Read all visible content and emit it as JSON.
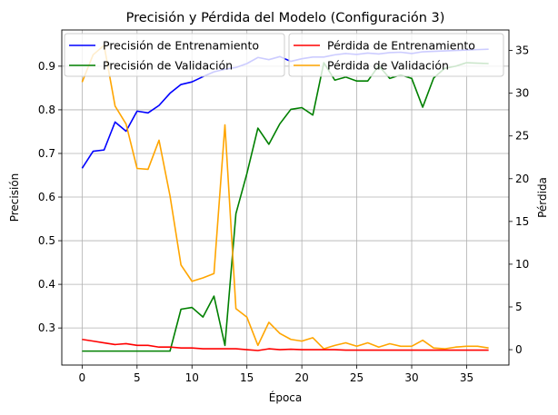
{
  "chart_data": {
    "type": "line",
    "title": "Precisión y Pérdida del Modelo (Configuración 3)",
    "xlabel": "Época",
    "ylabel_left": "Precisión",
    "ylabel_right": "Pérdida",
    "xlim": [
      -1.85,
      38.85
    ],
    "ylim_left": [
      0.215,
      0.983
    ],
    "ylim_right": [
      -1.8,
      37.4
    ],
    "xticks": [
      0,
      5,
      10,
      15,
      20,
      25,
      30,
      35
    ],
    "yticks_left": [
      0.3,
      0.4,
      0.5,
      0.6,
      0.7,
      0.8,
      0.9
    ],
    "yticks_right": [
      0,
      5,
      10,
      15,
      20,
      25,
      30,
      35
    ],
    "grid": true,
    "legend_left_placement": "upper-left",
    "legend_right_placement": "upper-right",
    "series": [
      {
        "name": "Precisión de Entrenamiento",
        "axis": "left",
        "color": "#0000ff",
        "x": [
          0,
          1,
          2,
          3,
          4,
          5,
          6,
          7,
          8,
          9,
          10,
          11,
          12,
          13,
          14,
          15,
          16,
          17,
          18,
          19,
          20,
          21,
          22,
          23,
          24,
          25,
          26,
          27,
          28,
          29,
          30,
          31,
          32,
          33,
          34,
          35,
          36,
          37
        ],
        "values": [
          0.666,
          0.705,
          0.708,
          0.772,
          0.751,
          0.797,
          0.793,
          0.81,
          0.838,
          0.858,
          0.864,
          0.876,
          0.887,
          0.893,
          0.897,
          0.906,
          0.92,
          0.915,
          0.922,
          0.911,
          0.917,
          0.921,
          0.921,
          0.926,
          0.929,
          0.927,
          0.93,
          0.928,
          0.931,
          0.932,
          0.929,
          0.933,
          0.934,
          0.935,
          0.936,
          0.937,
          0.938,
          0.939
        ]
      },
      {
        "name": "Precisión de Validación",
        "axis": "left",
        "color": "#008000",
        "x": [
          0,
          1,
          2,
          3,
          4,
          5,
          6,
          7,
          8,
          9,
          10,
          11,
          12,
          13,
          14,
          15,
          16,
          17,
          18,
          19,
          20,
          21,
          22,
          23,
          24,
          25,
          26,
          27,
          28,
          29,
          30,
          31,
          32,
          33,
          34,
          35,
          36,
          37
        ],
        "values": [
          0.247,
          0.247,
          0.247,
          0.247,
          0.247,
          0.247,
          0.247,
          0.247,
          0.247,
          0.343,
          0.347,
          0.325,
          0.373,
          0.26,
          0.562,
          0.654,
          0.758,
          0.721,
          0.768,
          0.801,
          0.805,
          0.788,
          0.908,
          0.868,
          0.875,
          0.866,
          0.866,
          0.901,
          0.872,
          0.88,
          0.872,
          0.806,
          0.873,
          0.895,
          0.9,
          0.908,
          0.907,
          0.906
        ]
      },
      {
        "name": "Pérdida de Entrenamiento",
        "axis": "right",
        "color": "#ff0000",
        "x": [
          0,
          1,
          2,
          3,
          4,
          5,
          6,
          7,
          8,
          9,
          10,
          11,
          12,
          13,
          14,
          15,
          16,
          17,
          18,
          19,
          20,
          21,
          22,
          23,
          24,
          25,
          26,
          27,
          28,
          29,
          30,
          31,
          32,
          33,
          34,
          35,
          36,
          37
        ],
        "values": [
          1.2,
          1.0,
          0.8,
          0.6,
          0.7,
          0.5,
          0.5,
          0.3,
          0.3,
          0.2,
          0.2,
          0.1,
          0.1,
          0.1,
          0.1,
          0.0,
          -0.1,
          0.1,
          0.0,
          0.05,
          0.0,
          0.0,
          0.0,
          0.0,
          -0.05,
          -0.05,
          -0.05,
          -0.05,
          -0.05,
          -0.05,
          -0.05,
          -0.05,
          -0.05,
          -0.05,
          -0.05,
          -0.05,
          -0.05,
          -0.05
        ]
      },
      {
        "name": "Pérdida de Validación",
        "axis": "right",
        "color": "#ffa500",
        "x": [
          0,
          1,
          2,
          3,
          4,
          5,
          6,
          7,
          8,
          9,
          10,
          11,
          12,
          13,
          14,
          15,
          16,
          17,
          18,
          19,
          20,
          21,
          22,
          23,
          24,
          25,
          26,
          27,
          28,
          29,
          30,
          31,
          32,
          33,
          34,
          35,
          36,
          37
        ],
        "values": [
          31.3,
          34.5,
          35.6,
          28.5,
          26.4,
          21.2,
          21.1,
          24.5,
          18.0,
          9.9,
          8.0,
          8.4,
          8.9,
          26.3,
          4.8,
          3.8,
          0.5,
          3.2,
          1.9,
          1.2,
          1.0,
          1.4,
          0.1,
          0.5,
          0.8,
          0.4,
          0.8,
          0.3,
          0.7,
          0.4,
          0.4,
          1.1,
          0.2,
          0.1,
          0.3,
          0.4,
          0.4,
          0.2
        ]
      }
    ]
  }
}
